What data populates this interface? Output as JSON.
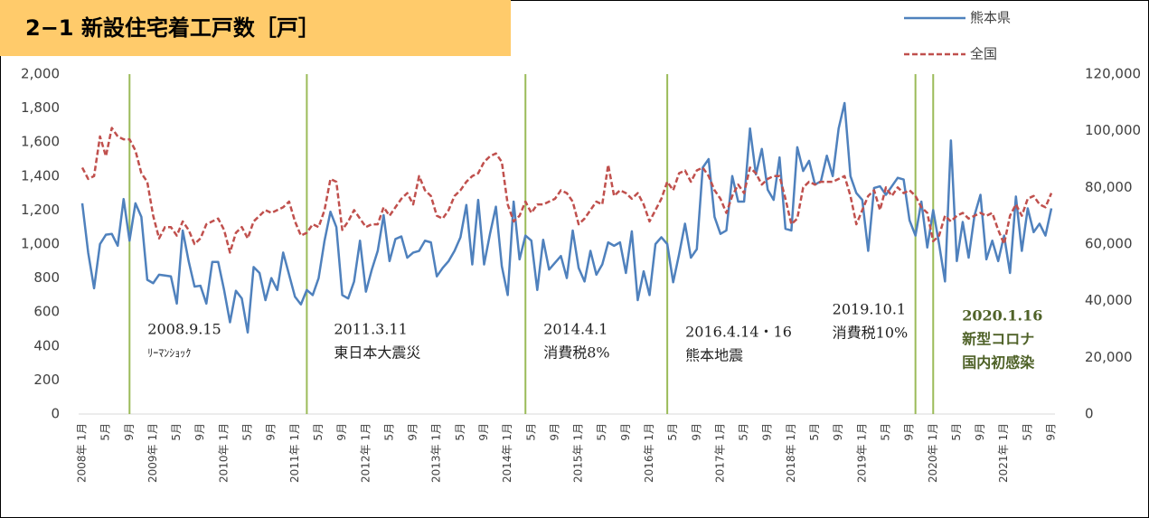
{
  "chart_data": {
    "type": "line",
    "title": "2−1 新設住宅着工戸数［戸］",
    "categories": [
      "2008年 1月",
      null,
      null,
      null,
      "5月",
      null,
      null,
      null,
      "9月",
      null,
      null,
      null,
      "2009年 1月",
      null,
      null,
      null,
      "5月",
      null,
      null,
      null,
      "9月",
      null,
      null,
      null,
      "2010年 1月",
      null,
      null,
      null,
      "5月",
      null,
      null,
      null,
      "9月",
      null,
      null,
      null,
      "2011年 1月",
      null,
      null,
      null,
      "5月",
      null,
      null,
      null,
      "9月",
      null,
      null,
      null,
      "2012年 1月",
      null,
      null,
      null,
      "5月",
      null,
      null,
      null,
      "9月",
      null,
      null,
      null,
      "2013年 1月",
      null,
      null,
      null,
      "5月",
      null,
      null,
      null,
      "9月",
      null,
      null,
      null,
      "2014年 1月",
      null,
      null,
      null,
      "5月",
      null,
      null,
      null,
      "9月",
      null,
      null,
      null,
      "2015年 1月",
      null,
      null,
      null,
      "5月",
      null,
      null,
      null,
      "9月",
      null,
      null,
      null,
      "2016年 1月",
      null,
      null,
      null,
      "5月",
      null,
      null,
      null,
      "9月",
      null,
      null,
      null,
      "2017年 1月",
      null,
      null,
      null,
      "5月",
      null,
      null,
      null,
      "9月",
      null,
      null,
      null,
      "2018年 1月",
      null,
      null,
      null,
      "5月",
      null,
      null,
      null,
      "9月",
      null,
      null,
      null,
      "2019年 1月",
      null,
      null,
      null,
      "5月",
      null,
      null,
      null,
      "9月",
      null,
      null,
      null,
      "2020年 1月",
      null,
      null,
      null,
      "5月",
      null,
      null,
      null,
      "9月",
      null,
      null,
      null,
      "2021年 1月",
      null,
      null,
      null,
      "5月",
      null,
      null,
      null,
      "9月"
    ],
    "series": [
      {
        "name": "熊本県",
        "color": "#4f81bd",
        "axis": "y",
        "dashed": false,
        "values": [
          1240,
          950,
          740,
          1000,
          1055,
          1060,
          990,
          1265,
          1020,
          1240,
          1160,
          790,
          770,
          820,
          815,
          810,
          650,
          1080,
          900,
          750,
          755,
          650,
          895,
          895,
          730,
          540,
          725,
          680,
          480,
          865,
          830,
          670,
          800,
          730,
          950,
          820,
          690,
          645,
          730,
          700,
          800,
          1020,
          1190,
          1100,
          700,
          680,
          780,
          1020,
          720,
          850,
          960,
          1170,
          900,
          1030,
          1045,
          920,
          950,
          960,
          1020,
          1010,
          810,
          860,
          900,
          960,
          1040,
          1230,
          880,
          1260,
          880,
          1060,
          1220,
          870,
          700,
          1250,
          910,
          1050,
          1020,
          730,
          1025,
          850,
          890,
          930,
          800,
          1080,
          860,
          780,
          960,
          820,
          880,
          1010,
          990,
          1010,
          830,
          1075,
          670,
          840,
          700,
          1000,
          1040,
          1000,
          775,
          940,
          1120,
          920,
          970,
          1450,
          1500,
          1160,
          1060,
          1080,
          1400,
          1250,
          1250,
          1680,
          1410,
          1560,
          1320,
          1260,
          1510,
          1090,
          1080,
          1570,
          1430,
          1490,
          1350,
          1370,
          1520,
          1400,
          1680,
          1830,
          1400,
          1300,
          1260,
          960,
          1330,
          1340,
          1290,
          1340,
          1390,
          1380,
          1140,
          1050,
          1250,
          980,
          1200,
          1000,
          780,
          1610,
          900,
          1130,
          920,
          1170,
          1290,
          910,
          1020,
          900,
          1050,
          830,
          1280,
          960,
          1210,
          1070,
          1120,
          1050,
          1210
        ]
      },
      {
        "name": "全国",
        "color": "#c0504d",
        "axis": "y2",
        "dashed": true,
        "values": [
          87000,
          83000,
          84000,
          98000,
          91000,
          101000,
          98000,
          97000,
          97000,
          93000,
          85000,
          82000,
          70000,
          62000,
          66000,
          66000,
          63000,
          68000,
          65000,
          60000,
          62000,
          67000,
          68000,
          69000,
          65000,
          57000,
          64000,
          66000,
          62000,
          68000,
          70000,
          72000,
          71000,
          72000,
          73000,
          75000,
          68000,
          63000,
          64000,
          67000,
          66000,
          72000,
          83000,
          82000,
          65000,
          68000,
          72000,
          69000,
          66000,
          67000,
          67000,
          73000,
          70000,
          73000,
          76000,
          78000,
          74000,
          84000,
          79000,
          77000,
          70000,
          69000,
          72000,
          77000,
          79000,
          82000,
          84000,
          85000,
          89000,
          91000,
          92000,
          89000,
          74000,
          68000,
          70000,
          75000,
          71000,
          74000,
          74000,
          75000,
          76000,
          79000,
          78000,
          75000,
          67000,
          69000,
          72000,
          75000,
          74000,
          88000,
          77000,
          79000,
          78000,
          76000,
          78000,
          74000,
          68000,
          72000,
          76000,
          82000,
          79000,
          85000,
          86000,
          82000,
          86000,
          87000,
          84000,
          79000,
          76000,
          71000,
          77000,
          81000,
          78000,
          87000,
          85000,
          81000,
          83000,
          84000,
          84000,
          76000,
          67000,
          69000,
          80000,
          82000,
          81000,
          82000,
          82000,
          82000,
          83000,
          84000,
          77000,
          67000,
          72000,
          77000,
          79000,
          72000,
          80000,
          77000,
          80000,
          78000,
          79000,
          77000,
          73000,
          71000,
          61000,
          63000,
          70000,
          68000,
          70000,
          71000,
          69000,
          70000,
          71000,
          70000,
          71000,
          65000,
          60000,
          70000,
          74000,
          70000,
          76000,
          77000,
          74000,
          73000,
          78000
        ]
      }
    ],
    "ylim": [
      0,
      2000
    ],
    "yticks": [
      0,
      200,
      400,
      600,
      800,
      {
        "value": 1000,
        "label": "1,000"
      },
      {
        "value": 1200,
        "label": "1,200"
      },
      {
        "value": 1400,
        "label": "1,400"
      },
      {
        "value": 1600,
        "label": "1,600"
      },
      {
        "value": 1800,
        "label": "1,800"
      },
      {
        "value": 2000,
        "label": "2,000"
      }
    ],
    "y2lim": [
      0,
      120000
    ],
    "y2ticks": [
      0,
      {
        "value": 20000,
        "label": "20,000"
      },
      {
        "value": 40000,
        "label": "40,000"
      },
      {
        "value": 60000,
        "label": "60,000"
      },
      {
        "value": 80000,
        "label": "80,000"
      },
      {
        "value": 100000,
        "label": "100,000"
      },
      {
        "value": 120000,
        "label": "120,000"
      }
    ],
    "grid": false,
    "legend": "top-right",
    "event_line_color": "#9bbb59",
    "annotations": [
      {
        "lines": [
          "2008.9.15",
          "ﾘｰﾏﾝｼｮｯｸ"
        ]
      },
      {
        "lines": [
          "2011.3.11",
          "東日本大震災"
        ]
      },
      {
        "lines": [
          "2014.4.1",
          "消費税8%"
        ]
      },
      {
        "lines": [
          "2016.4.14・16",
          "熊本地震"
        ]
      },
      {
        "lines": [
          "2019.10.1",
          "消費税10%"
        ]
      },
      {
        "lines": [
          "2020.1.16",
          "新型コロナ",
          "国内初感染"
        ],
        "color": "#4f6228",
        "bold": true
      }
    ]
  }
}
